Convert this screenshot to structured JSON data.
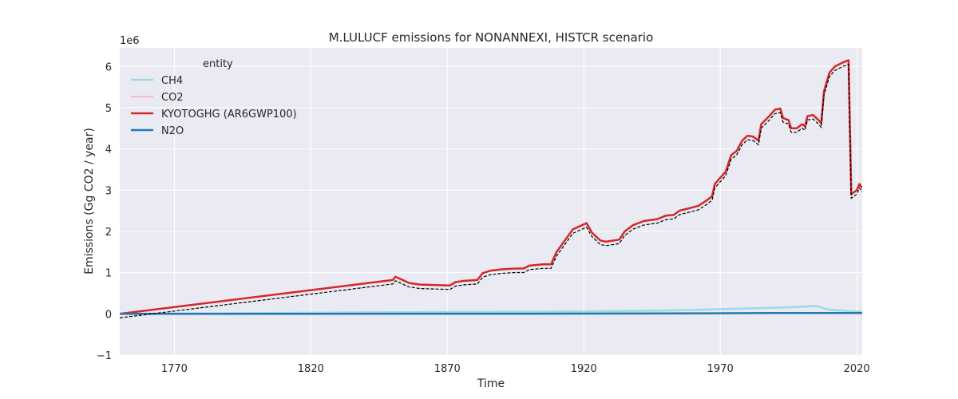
{
  "chart_data": {
    "type": "line",
    "title": "M.LULUCF emissions for NONANNEXI, HISTCR scenario",
    "xlabel": "Time",
    "ylabel": "Emissions (Gg CO2 / year)",
    "y_multiplier_label": "1e6",
    "y_scale_factor": 1000000,
    "xlim": [
      1750,
      2022
    ],
    "ylim": [
      -1.0,
      6.45
    ],
    "x_ticks": [
      1770,
      1820,
      1870,
      1920,
      1970,
      2020
    ],
    "y_ticks": [
      -1,
      0,
      1,
      2,
      3,
      4,
      5,
      6
    ],
    "grid": true,
    "legend": {
      "title": "entity",
      "placement": "top-left"
    },
    "series": [
      {
        "name": "CH4",
        "color": "#9edae5",
        "width": 2.5,
        "points": [
          [
            1750,
            0
          ],
          [
            1850,
            0.04
          ],
          [
            1900,
            0.05
          ],
          [
            1950,
            0.08
          ],
          [
            1985,
            0.14
          ],
          [
            1995,
            0.16
          ],
          [
            2005,
            0.19
          ],
          [
            2010,
            0.1
          ],
          [
            2022,
            0.05
          ]
        ]
      },
      {
        "name": "CO2",
        "color": "#f7b6d2",
        "width": 2,
        "points": [
          [
            1750,
            0
          ],
          [
            1850,
            0.82
          ],
          [
            1851,
            0.9
          ],
          [
            1856,
            0.75
          ],
          [
            1860,
            0.71
          ],
          [
            1871,
            0.69
          ],
          [
            1873,
            0.77
          ],
          [
            1876,
            0.8
          ],
          [
            1881,
            0.82
          ],
          [
            1883,
            0.99
          ],
          [
            1886,
            1.05
          ],
          [
            1890,
            1.08
          ],
          [
            1895,
            1.1
          ],
          [
            1898,
            1.1
          ],
          [
            1900,
            1.17
          ],
          [
            1905,
            1.2
          ],
          [
            1908,
            1.2
          ],
          [
            1910,
            1.5
          ],
          [
            1916,
            2.05
          ],
          [
            1920,
            2.17
          ],
          [
            1921,
            2.2
          ],
          [
            1923,
            1.97
          ],
          [
            1926,
            1.78
          ],
          [
            1928,
            1.75
          ],
          [
            1933,
            1.8
          ],
          [
            1935,
            2.0
          ],
          [
            1938,
            2.15
          ],
          [
            1942,
            2.25
          ],
          [
            1947,
            2.3
          ],
          [
            1950,
            2.38
          ],
          [
            1953,
            2.4
          ],
          [
            1955,
            2.5
          ],
          [
            1958,
            2.55
          ],
          [
            1962,
            2.62
          ],
          [
            1965,
            2.75
          ],
          [
            1967,
            2.85
          ],
          [
            1968,
            3.15
          ],
          [
            1970,
            3.3
          ],
          [
            1972,
            3.45
          ],
          [
            1974,
            3.85
          ],
          [
            1976,
            3.95
          ],
          [
            1978,
            4.2
          ],
          [
            1980,
            4.32
          ],
          [
            1982,
            4.3
          ],
          [
            1984,
            4.2
          ],
          [
            1985,
            4.6
          ],
          [
            1988,
            4.8
          ],
          [
            1990,
            4.95
          ],
          [
            1992,
            4.98
          ],
          [
            1993,
            4.75
          ],
          [
            1995,
            4.7
          ],
          [
            1996,
            4.5
          ],
          [
            1998,
            4.5
          ],
          [
            2000,
            4.6
          ],
          [
            2001,
            4.55
          ],
          [
            2002,
            4.8
          ],
          [
            2004,
            4.82
          ],
          [
            2006,
            4.7
          ],
          [
            2007,
            4.62
          ],
          [
            2008,
            5.4
          ],
          [
            2010,
            5.85
          ],
          [
            2012,
            6.0
          ],
          [
            2015,
            6.1
          ],
          [
            2017,
            6.15
          ],
          [
            2018,
            2.9
          ],
          [
            2020,
            3.0
          ],
          [
            2021,
            3.15
          ],
          [
            2022,
            3.05
          ]
        ]
      },
      {
        "name": "KYOTOGHG (AR6GWP100)",
        "color": "#d62728",
        "width": 2.5,
        "points": [
          [
            1750,
            0
          ],
          [
            1850,
            0.82
          ],
          [
            1851,
            0.9
          ],
          [
            1856,
            0.75
          ],
          [
            1860,
            0.71
          ],
          [
            1871,
            0.69
          ],
          [
            1873,
            0.77
          ],
          [
            1876,
            0.8
          ],
          [
            1881,
            0.82
          ],
          [
            1883,
            0.99
          ],
          [
            1886,
            1.05
          ],
          [
            1890,
            1.08
          ],
          [
            1895,
            1.1
          ],
          [
            1898,
            1.1
          ],
          [
            1900,
            1.17
          ],
          [
            1905,
            1.2
          ],
          [
            1908,
            1.2
          ],
          [
            1910,
            1.5
          ],
          [
            1916,
            2.05
          ],
          [
            1920,
            2.17
          ],
          [
            1921,
            2.2
          ],
          [
            1923,
            1.97
          ],
          [
            1926,
            1.78
          ],
          [
            1928,
            1.75
          ],
          [
            1933,
            1.8
          ],
          [
            1935,
            2.0
          ],
          [
            1938,
            2.15
          ],
          [
            1942,
            2.25
          ],
          [
            1947,
            2.3
          ],
          [
            1950,
            2.38
          ],
          [
            1953,
            2.4
          ],
          [
            1955,
            2.5
          ],
          [
            1958,
            2.55
          ],
          [
            1962,
            2.62
          ],
          [
            1965,
            2.75
          ],
          [
            1967,
            2.85
          ],
          [
            1968,
            3.15
          ],
          [
            1970,
            3.3
          ],
          [
            1972,
            3.45
          ],
          [
            1974,
            3.85
          ],
          [
            1976,
            3.95
          ],
          [
            1978,
            4.2
          ],
          [
            1980,
            4.32
          ],
          [
            1982,
            4.3
          ],
          [
            1984,
            4.2
          ],
          [
            1985,
            4.6
          ],
          [
            1988,
            4.8
          ],
          [
            1990,
            4.95
          ],
          [
            1992,
            4.98
          ],
          [
            1993,
            4.75
          ],
          [
            1995,
            4.7
          ],
          [
            1996,
            4.5
          ],
          [
            1998,
            4.5
          ],
          [
            2000,
            4.6
          ],
          [
            2001,
            4.55
          ],
          [
            2002,
            4.8
          ],
          [
            2004,
            4.82
          ],
          [
            2006,
            4.7
          ],
          [
            2007,
            4.62
          ],
          [
            2008,
            5.4
          ],
          [
            2010,
            5.85
          ],
          [
            2012,
            6.0
          ],
          [
            2015,
            6.1
          ],
          [
            2017,
            6.15
          ],
          [
            2018,
            2.9
          ],
          [
            2020,
            3.0
          ],
          [
            2021,
            3.15
          ],
          [
            2022,
            3.05
          ]
        ]
      },
      {
        "name": "N2O",
        "color": "#1f77b4",
        "width": 2.5,
        "points": [
          [
            1750,
            0
          ],
          [
            1900,
            0.005
          ],
          [
            1950,
            0.01
          ],
          [
            1990,
            0.02
          ],
          [
            2022,
            0.02
          ]
        ]
      }
    ]
  }
}
